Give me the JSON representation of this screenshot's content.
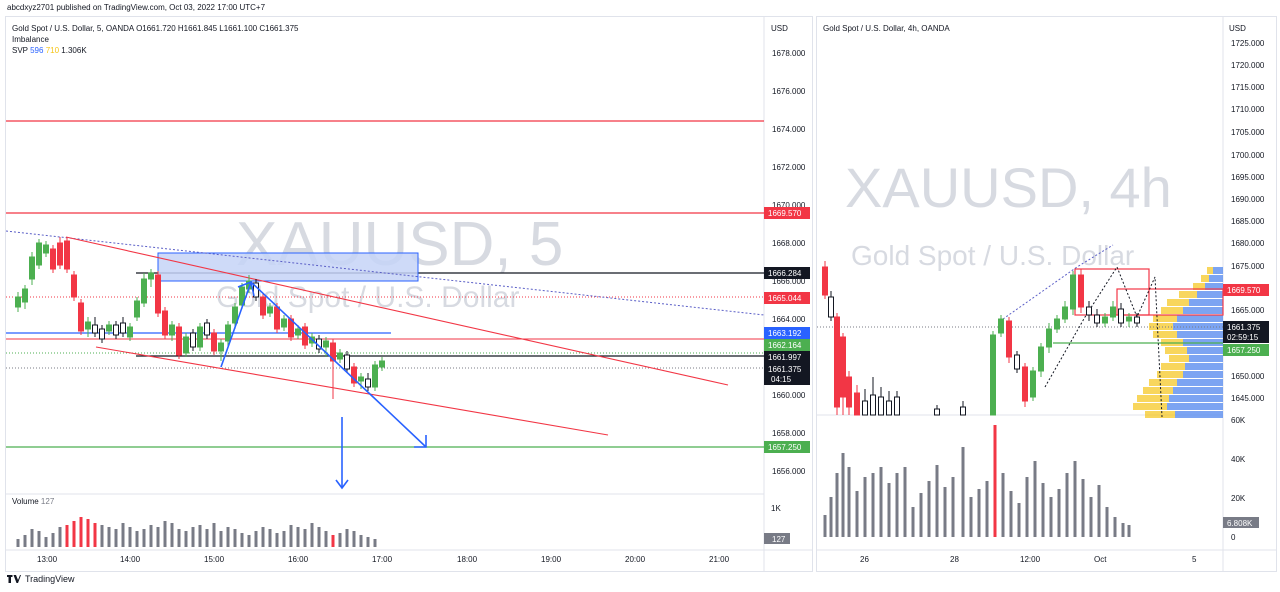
{
  "header": {
    "published": "abcdxyz2701 published on TradingView.com, Oct 03, 2022 17:00 UTC+7"
  },
  "left": {
    "symbol_line": "Gold Spot / U.S. Dollar, 5, OANDA",
    "ohlc": {
      "o": "O1661.720",
      "h": "H1661.845",
      "l": "L1661.100",
      "c": "C1661.375"
    },
    "indicator1": "Imbalance",
    "svp": {
      "label": "SVP",
      "v1": "596",
      "v2": "710",
      "v3": "1.306K"
    },
    "watermark_big": "XAUUSD, 5",
    "watermark_small": "Gold Spot / U.S. Dollar",
    "axis_currency": "USD",
    "y_ticks": [
      "1678.000",
      "1676.000",
      "1674.000",
      "1672.000",
      "1670.000",
      "1668.000",
      "1666.000",
      "1664.000",
      "1660.000",
      "1658.000",
      "1656.000"
    ],
    "x_ticks": [
      "13:00",
      "14:00",
      "15:00",
      "16:00",
      "17:00",
      "18:00",
      "19:00",
      "20:00",
      "21:00"
    ],
    "price_labels": {
      "p1669": "1669.570",
      "p1666": "1666.284",
      "p1665": "1665.044",
      "p1663": "1663.192",
      "p1662": "1662.164",
      "p1661a": "1661.997",
      "p1661b": "1661.375",
      "countdown": "04:15",
      "p1657": "1657.250"
    },
    "volume": {
      "label": "Volume",
      "value": "127",
      "axis_tick": "1K",
      "current": "127"
    }
  },
  "right": {
    "symbol_line": "Gold Spot / U.S. Dollar, 4h, OANDA",
    "watermark_big": "XAUUSD, 4h",
    "watermark_small": "Gold Spot / U.S. Dollar",
    "axis_currency": "USD",
    "y_ticks": [
      "1725.000",
      "1720.000",
      "1715.000",
      "1710.000",
      "1705.000",
      "1700.000",
      "1695.000",
      "1690.000",
      "1685.000",
      "1680.000",
      "1675.000",
      "1665.000",
      "1660.000",
      "1650.000",
      "1645.000"
    ],
    "vol_ticks": [
      "60K",
      "40K",
      "20K",
      "0"
    ],
    "x_ticks": [
      "26",
      "28",
      "12:00",
      "Oct",
      "5"
    ],
    "price_labels": {
      "p1669": "1669.570",
      "p1661": "1661.375",
      "countdown": "02:59:15",
      "p1657": "1657.250",
      "vol_current": "6.808K"
    }
  },
  "footer": {
    "brand": "TradingView"
  },
  "colors": {
    "red": "#f23645",
    "green": "#4caf50",
    "blue": "#2962ff",
    "black": "#131722",
    "grey": "#787b86"
  }
}
